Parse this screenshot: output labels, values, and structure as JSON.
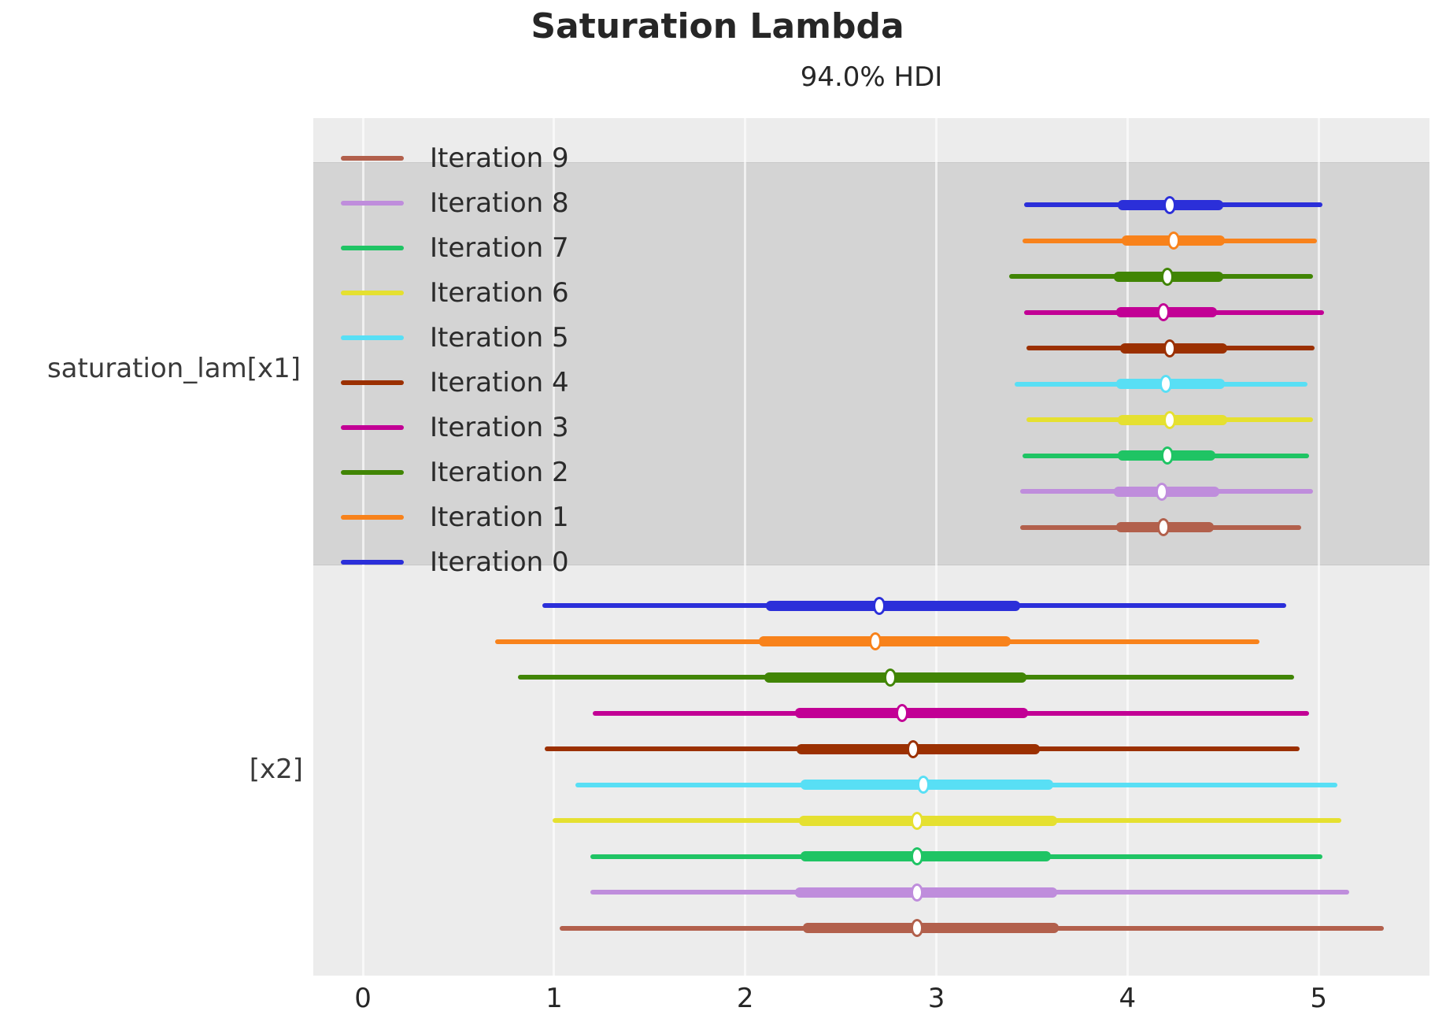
{
  "chart_data": {
    "type": "forest",
    "title": "Saturation Lambda",
    "subtitle": "94.0% HDI",
    "hdi_probability": "94.0%",
    "xlim": [
      -0.26,
      5.58
    ],
    "x_ticks": [
      "0",
      "1",
      "2",
      "3",
      "4",
      "5"
    ],
    "x_tick_values": [
      0,
      1,
      2,
      3,
      4,
      5
    ],
    "grid": "vertical-white",
    "legend_position": "upper-left",
    "plot_bg_color": "#ececec",
    "shaded_band_color": "#d4d4d4",
    "legend": [
      {
        "label": "Iteration 9",
        "color": "#b2604c"
      },
      {
        "label": "Iteration 8",
        "color": "#bf8ddc"
      },
      {
        "label": "Iteration 7",
        "color": "#1fc464"
      },
      {
        "label": "Iteration 6",
        "color": "#e5e030"
      },
      {
        "label": "Iteration 5",
        "color": "#58dff5"
      },
      {
        "label": "Iteration 4",
        "color": "#9b3001"
      },
      {
        "label": "Iteration 3",
        "color": "#c20095"
      },
      {
        "label": "Iteration 2",
        "color": "#418505"
      },
      {
        "label": "Iteration 1",
        "color": "#f8821b"
      },
      {
        "label": "Iteration 0",
        "color": "#2b2fd9"
      }
    ],
    "groups": [
      {
        "label": "saturation_lam[x1]",
        "shaded": true,
        "rows": [
          {
            "iteration": "Iteration 0",
            "hdi_94": [
              3.46,
              5.02
            ],
            "interquartile": [
              3.95,
              4.5
            ],
            "median": 4.22
          },
          {
            "iteration": "Iteration 1",
            "hdi_94": [
              3.45,
              4.99
            ],
            "interquartile": [
              3.97,
              4.51
            ],
            "median": 4.24
          },
          {
            "iteration": "Iteration 2",
            "hdi_94": [
              3.38,
              4.97
            ],
            "interquartile": [
              3.93,
              4.5
            ],
            "median": 4.21
          },
          {
            "iteration": "Iteration 3",
            "hdi_94": [
              3.46,
              5.03
            ],
            "interquartile": [
              3.94,
              4.47
            ],
            "median": 4.19
          },
          {
            "iteration": "Iteration 4",
            "hdi_94": [
              3.47,
              4.98
            ],
            "interquartile": [
              3.96,
              4.52
            ],
            "median": 4.22
          },
          {
            "iteration": "Iteration 5",
            "hdi_94": [
              3.41,
              4.94
            ],
            "interquartile": [
              3.94,
              4.51
            ],
            "median": 4.2
          },
          {
            "iteration": "Iteration 6",
            "hdi_94": [
              3.47,
              4.97
            ],
            "interquartile": [
              3.95,
              4.52
            ],
            "median": 4.22
          },
          {
            "iteration": "Iteration 7",
            "hdi_94": [
              3.45,
              4.95
            ],
            "interquartile": [
              3.95,
              4.46
            ],
            "median": 4.21
          },
          {
            "iteration": "Iteration 8",
            "hdi_94": [
              3.44,
              4.97
            ],
            "interquartile": [
              3.93,
              4.48
            ],
            "median": 4.18
          },
          {
            "iteration": "Iteration 9",
            "hdi_94": [
              3.44,
              4.91
            ],
            "interquartile": [
              3.94,
              4.45
            ],
            "median": 4.19
          }
        ]
      },
      {
        "label": "[x2]",
        "shaded": false,
        "rows": [
          {
            "iteration": "Iteration 0",
            "hdi_94": [
              0.94,
              4.83
            ],
            "interquartile": [
              2.11,
              3.44
            ],
            "median": 2.7
          },
          {
            "iteration": "Iteration 1",
            "hdi_94": [
              0.69,
              4.69
            ],
            "interquartile": [
              2.07,
              3.39
            ],
            "median": 2.68
          },
          {
            "iteration": "Iteration 2",
            "hdi_94": [
              0.81,
              4.87
            ],
            "interquartile": [
              2.1,
              3.47
            ],
            "median": 2.76
          },
          {
            "iteration": "Iteration 3",
            "hdi_94": [
              1.2,
              4.95
            ],
            "interquartile": [
              2.26,
              3.48
            ],
            "median": 2.82
          },
          {
            "iteration": "Iteration 4",
            "hdi_94": [
              0.95,
              4.9
            ],
            "interquartile": [
              2.27,
              3.54
            ],
            "median": 2.88
          },
          {
            "iteration": "Iteration 5",
            "hdi_94": [
              1.11,
              5.1
            ],
            "interquartile": [
              2.29,
              3.61
            ],
            "median": 2.93
          },
          {
            "iteration": "Iteration 6",
            "hdi_94": [
              0.99,
              5.12
            ],
            "interquartile": [
              2.28,
              3.63
            ],
            "median": 2.9
          },
          {
            "iteration": "Iteration 7",
            "hdi_94": [
              1.19,
              5.02
            ],
            "interquartile": [
              2.29,
              3.6
            ],
            "median": 2.9
          },
          {
            "iteration": "Iteration 8",
            "hdi_94": [
              1.19,
              5.16
            ],
            "interquartile": [
              2.26,
              3.63
            ],
            "median": 2.9
          },
          {
            "iteration": "Iteration 9",
            "hdi_94": [
              1.03,
              5.34
            ],
            "interquartile": [
              2.3,
              3.64
            ],
            "median": 2.9
          }
        ]
      }
    ]
  }
}
